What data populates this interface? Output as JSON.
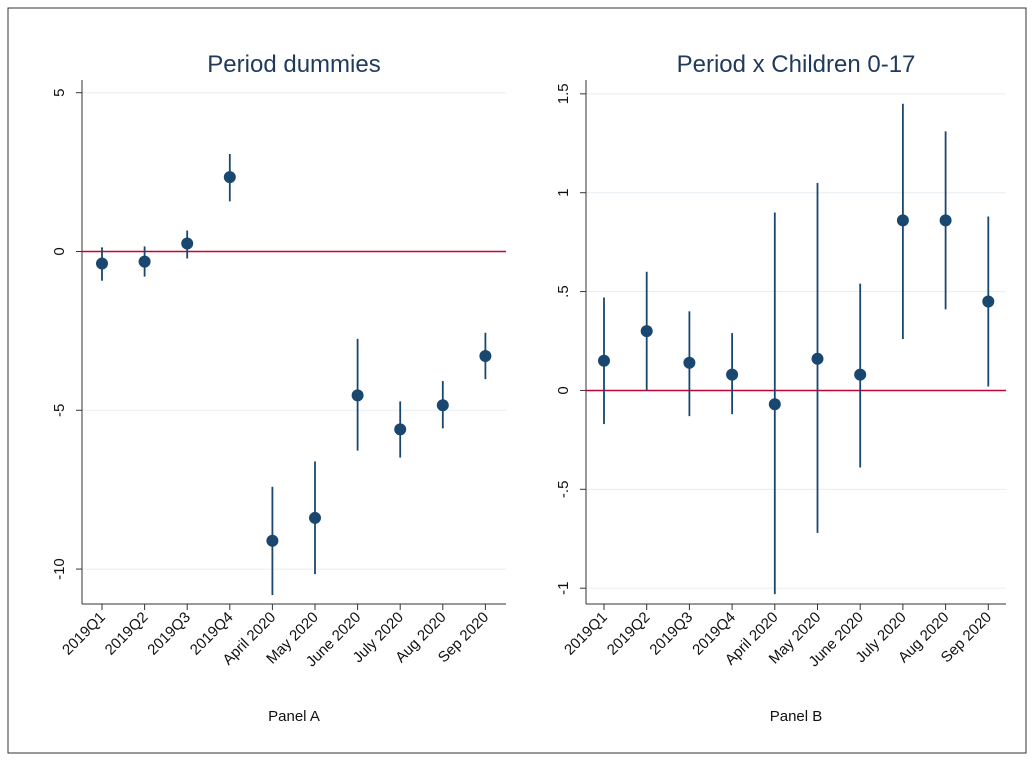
{
  "chart_data": [
    {
      "type": "errorbar",
      "title": "Period dummies",
      "xlabel": "Panel A",
      "categories": [
        "2019Q1",
        "2019Q2",
        "2019Q3",
        "2019Q4",
        "April 2020",
        "May 2020",
        "June 2020",
        "July 2020",
        "Aug 2020",
        "Sep 2020"
      ],
      "values": [
        -0.38,
        -0.32,
        0.25,
        2.34,
        -9.11,
        -8.39,
        -4.53,
        -5.6,
        -4.84,
        -3.29
      ],
      "ci_low": [
        -0.92,
        -0.79,
        -0.22,
        1.58,
        -10.82,
        -10.16,
        -6.27,
        -6.49,
        -5.57,
        -4.02
      ],
      "ci_high": [
        0.13,
        0.16,
        0.66,
        3.07,
        -7.41,
        -6.61,
        -2.75,
        -4.72,
        -4.08,
        -2.56
      ],
      "color": "#1a476f",
      "reference_line": 0,
      "reference_color": "#c10534",
      "ylim": [
        -11.1,
        5.4
      ],
      "yticks": [
        -10,
        -5,
        0,
        5
      ],
      "grid": true
    },
    {
      "type": "errorbar",
      "title": "Period x Children 0-17",
      "xlabel": "Panel B",
      "categories": [
        "2019Q1",
        "2019Q2",
        "2019Q3",
        "2019Q4",
        "April 2020",
        "May 2020",
        "June 2020",
        "July 2020",
        "Aug 2020",
        "Sep 2020"
      ],
      "values": [
        0.15,
        0.3,
        0.14,
        0.08,
        -0.07,
        0.16,
        0.08,
        0.86,
        0.86,
        0.45
      ],
      "ci_low": [
        -0.17,
        0.0,
        -0.13,
        -0.12,
        -1.03,
        -0.72,
        -0.39,
        0.26,
        0.41,
        0.02
      ],
      "ci_high": [
        0.47,
        0.6,
        0.4,
        0.29,
        0.9,
        1.05,
        0.54,
        1.45,
        1.31,
        0.88
      ],
      "color": "#1a476f",
      "reference_line": 0,
      "reference_color": "#c10534",
      "ylim": [
        -1.08,
        1.57
      ],
      "yticks": [
        -1,
        {
          "value": -0.5,
          "label": "-.5"
        },
        0,
        {
          "value": 0.5,
          "label": ".5"
        },
        1,
        1.5
      ],
      "grid": true
    }
  ]
}
